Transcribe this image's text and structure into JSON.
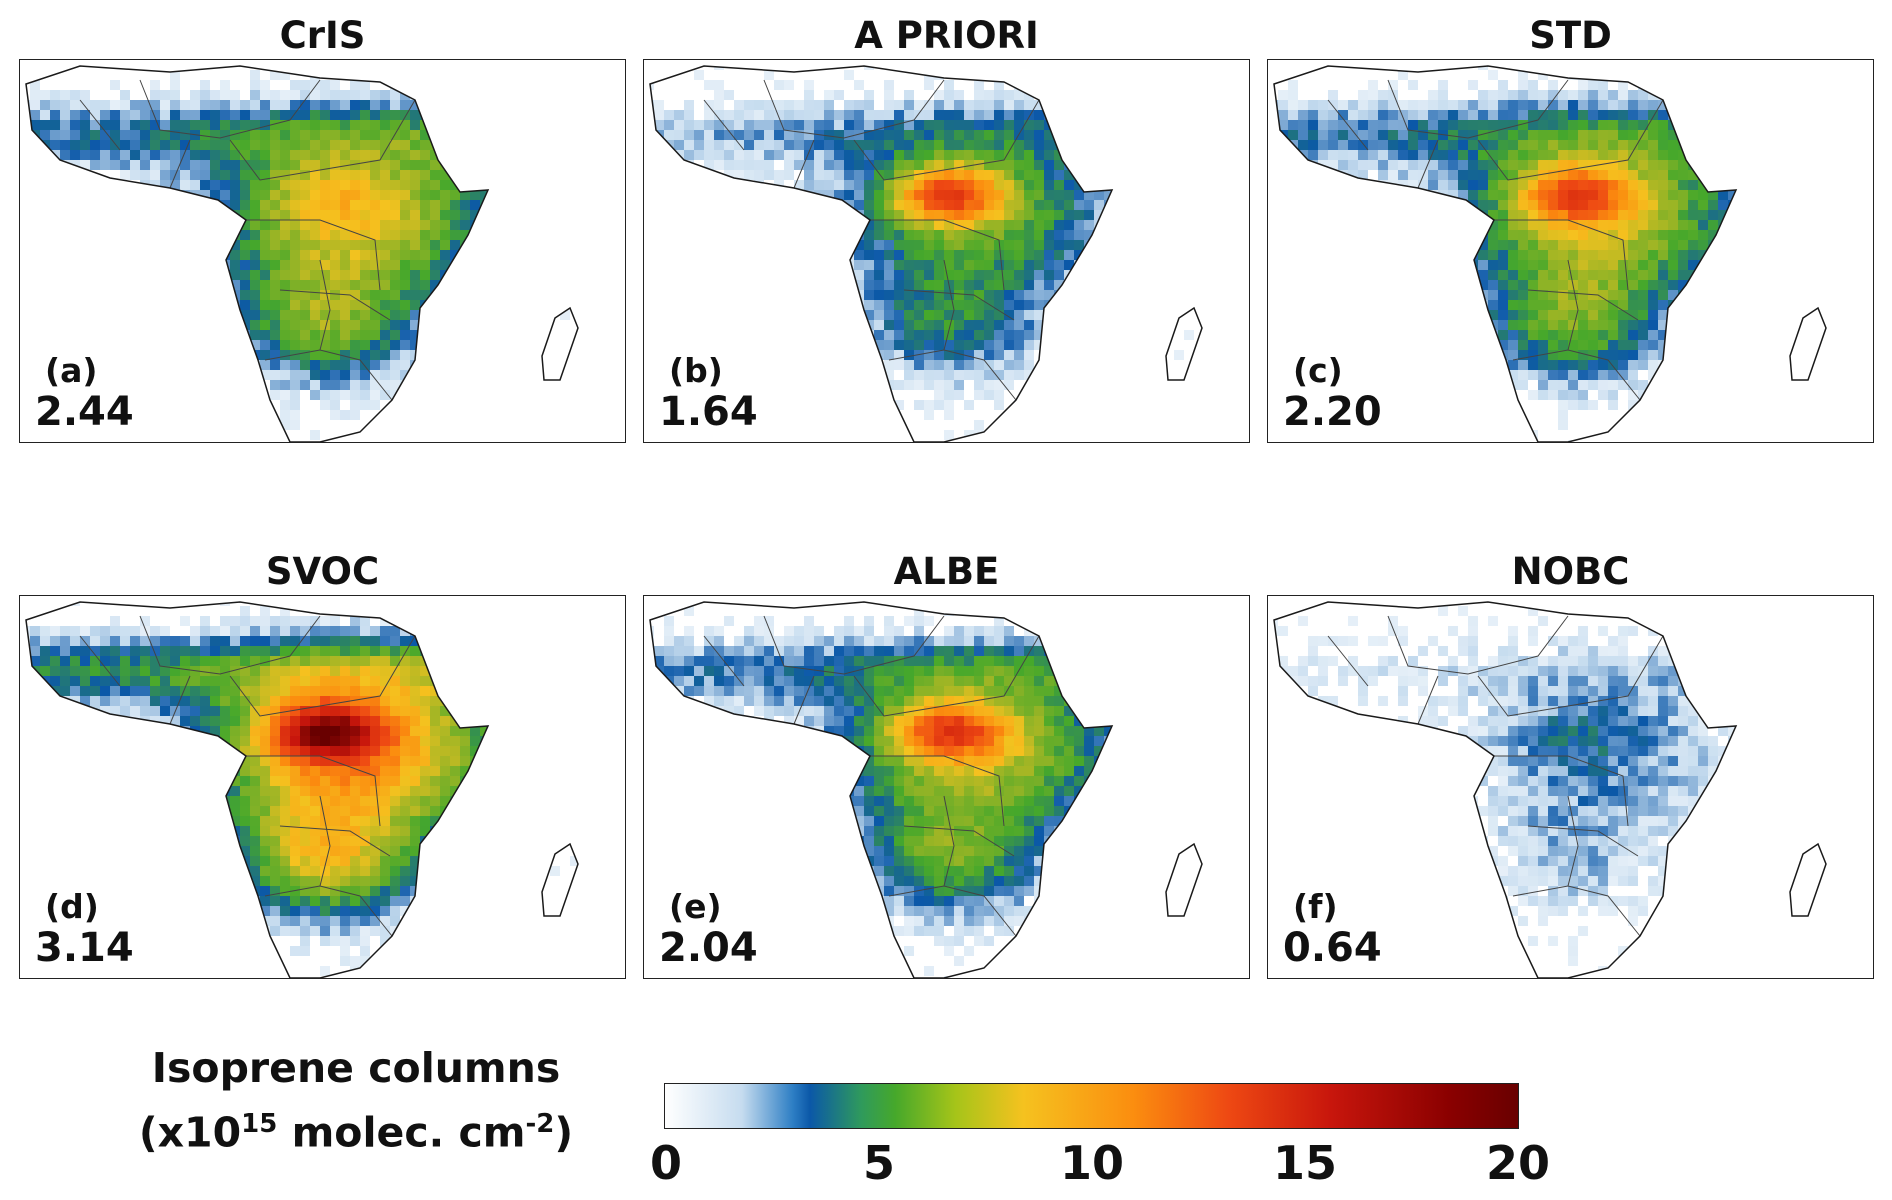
{
  "panels": [
    {
      "title": "CrIS",
      "letter": "(a)",
      "value": "2.44",
      "intensity": 0.45,
      "hotspot": 0.15
    },
    {
      "title": "A PRIORI",
      "letter": "(b)",
      "value": "1.64",
      "intensity": 0.3,
      "hotspot": 0.85
    },
    {
      "title": "STD",
      "letter": "(c)",
      "value": "2.20",
      "intensity": 0.42,
      "hotspot": 0.7
    },
    {
      "title": "SVOC",
      "letter": "(d)",
      "value": "3.14",
      "intensity": 0.6,
      "hotspot": 1.0
    },
    {
      "title": "ALBE",
      "letter": "(e)",
      "value": "2.04",
      "intensity": 0.4,
      "hotspot": 0.75
    },
    {
      "title": "NOBC",
      "letter": "(f)",
      "value": "0.64",
      "intensity": 0.15,
      "hotspot": 0.1
    }
  ],
  "colorbar": {
    "label_line1": "Isoprene columns",
    "label_line2_prefix": "(x10",
    "label_line2_exp": "15",
    "label_line2_mid": " molec. cm",
    "label_line2_exp2": "-2",
    "label_line2_suffix": ")",
    "ticks": [
      "0",
      "5",
      "10",
      "15",
      "20"
    ],
    "min": 0,
    "max": 20,
    "colormap": [
      "#ffffff",
      "#c6dcef",
      "#0b58a8",
      "#46a82b",
      "#f5c21f",
      "#fb8d0f",
      "#ee4913",
      "#8a0000"
    ]
  },
  "colors": {
    "coastline": "#1a1a1a",
    "borders": "#444444",
    "land_background": "#ffffff"
  }
}
